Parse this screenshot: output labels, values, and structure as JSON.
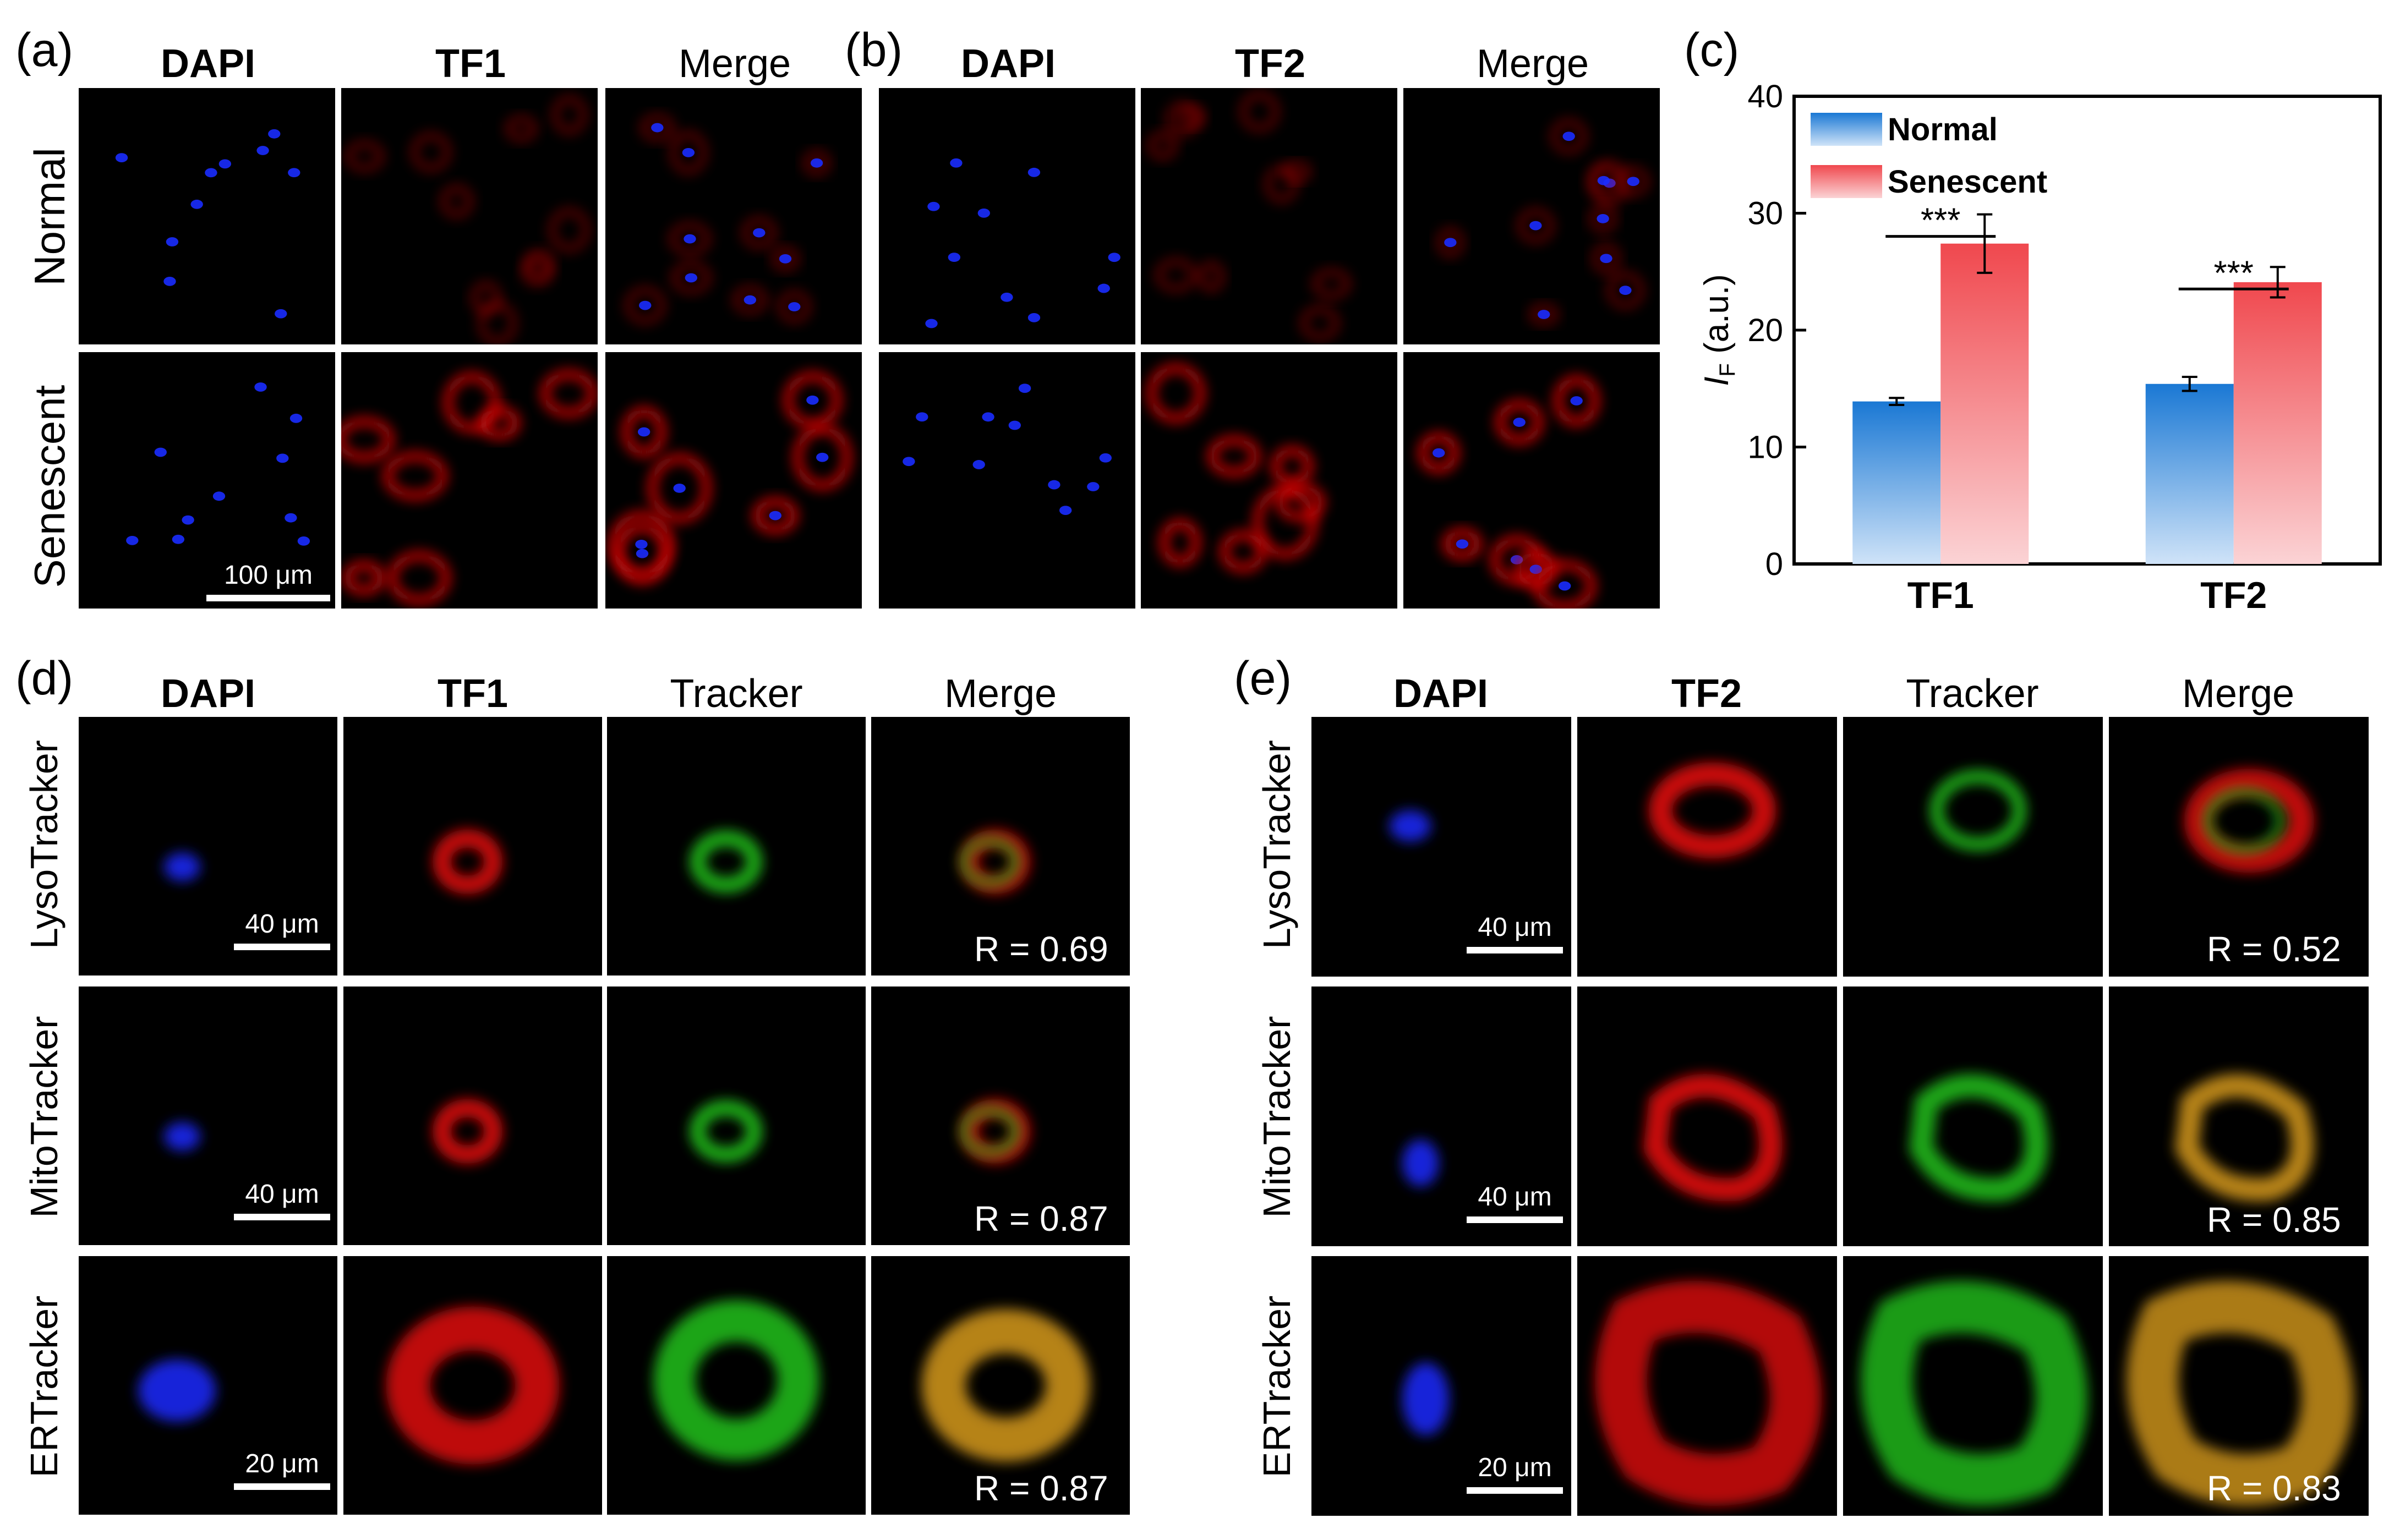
{
  "panel_letters": {
    "a": "(a)",
    "b": "(b)",
    "c": "(c)",
    "d": "(d)",
    "e": "(e)"
  },
  "panel_a": {
    "headers": [
      "DAPI",
      "TF1",
      "Merge"
    ],
    "rows": [
      "Normal",
      "Senescent"
    ],
    "scale_bar": "100 μm"
  },
  "panel_b": {
    "headers": [
      "DAPI",
      "TF2",
      "Merge"
    ]
  },
  "panel_d": {
    "headers": [
      "DAPI",
      "TF1",
      "Tracker",
      "Merge"
    ],
    "rows": [
      "LysoTracker",
      "MitoTracker",
      "ERTracker"
    ],
    "scale_bars": [
      "40 μm",
      "40 μm",
      "20 μm"
    ],
    "r_values": [
      "R = 0.69",
      "R = 0.87",
      "R = 0.87"
    ]
  },
  "panel_e": {
    "headers": [
      "DAPI",
      "TF2",
      "Tracker",
      "Merge"
    ],
    "rows": [
      "LysoTracker",
      "MitoTracker",
      "ERTracker"
    ],
    "scale_bars": [
      "40 μm",
      "40 μm",
      "20 μm"
    ],
    "r_values": [
      "R = 0.52",
      "R = 0.85",
      "R = 0.83"
    ]
  },
  "colors": {
    "normal": "#1a78d4",
    "senescent": "#f0484e",
    "dapi": "#1a2cff",
    "red_stain": "#e01010",
    "green_stain": "#22c21a"
  },
  "chart_data": {
    "type": "bar",
    "categories": [
      "TF1",
      "TF2"
    ],
    "series": [
      {
        "name": "Normal",
        "values": [
          13.9,
          15.4
        ],
        "errors": [
          0.3,
          0.6
        ]
      },
      {
        "name": "Senescent",
        "values": [
          27.4,
          24.1
        ],
        "errors": [
          2.5,
          1.3
        ]
      }
    ],
    "ylabel_main": "I",
    "ylabel_sub": "F",
    "ylabel_rest": " (a.u.)",
    "ylim": [
      0,
      40
    ],
    "yticks": [
      "0",
      "10",
      "20",
      "30",
      "40"
    ],
    "significance": [
      "***",
      "***"
    ],
    "legend": "top-left",
    "grid": false
  }
}
